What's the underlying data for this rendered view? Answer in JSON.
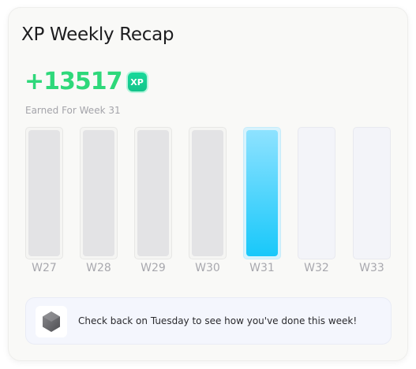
{
  "card": {
    "title": "XP Weekly Recap",
    "xp_value": "+13517",
    "xp_badge_label": "XP",
    "subtitle": "Earned For Week 31"
  },
  "weeks": [
    {
      "label": "W27",
      "status": "past",
      "level": 1.0
    },
    {
      "label": "W28",
      "status": "past",
      "level": 1.0
    },
    {
      "label": "W29",
      "status": "past",
      "level": 1.0
    },
    {
      "label": "W30",
      "status": "past",
      "level": 1.0
    },
    {
      "label": "W31",
      "status": "current",
      "level": 1.0
    },
    {
      "label": "W32",
      "status": "future",
      "level": 0
    },
    {
      "label": "W33",
      "status": "future",
      "level": 0
    }
  ],
  "notice": {
    "icon": "hexagon-badge-icon",
    "text": "Check back on Tuesday to see how you've done this week!"
  },
  "colors": {
    "xp_green": "#2ed87a",
    "current_bar": "#18c8fa",
    "past_bar": "#e3e3e5"
  }
}
